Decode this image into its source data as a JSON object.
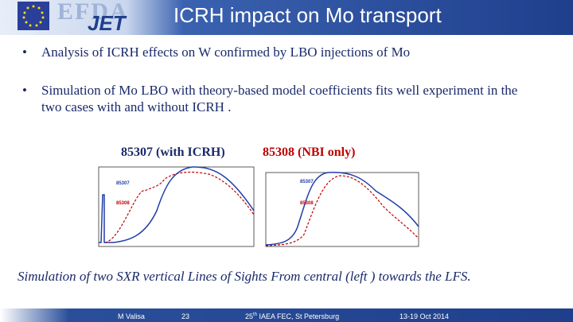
{
  "header": {
    "logo_efda": "EFDA",
    "logo_jet": "JET",
    "title": "ICRH  impact on Mo transport"
  },
  "bullets": [
    "Analysis of ICRH effects on W confirmed by LBO injections of Mo",
    "Simulation of  Mo LBO with theory-based model coefficients fits well experiment in the two cases with and without ICRH  ."
  ],
  "cases": {
    "with_icrh": "85307 (with ICRH)",
    "nbi_only": "85308  (NBI  only)"
  },
  "plots": [
    {
      "label_a": "85307",
      "label_b": "85308"
    },
    {
      "label_a": "85307",
      "label_b": "85308"
    }
  ],
  "caption": "Simulation of two SXR vertical Lines of Sights From central (left ) towards the LFS.",
  "footer": {
    "author": "M Valisa",
    "page": "23",
    "event_number": "25",
    "event_suffix": "th",
    "event_rest": " IAEA FEC, St Petersburg",
    "dates": "13-19 Oct 2014"
  }
}
